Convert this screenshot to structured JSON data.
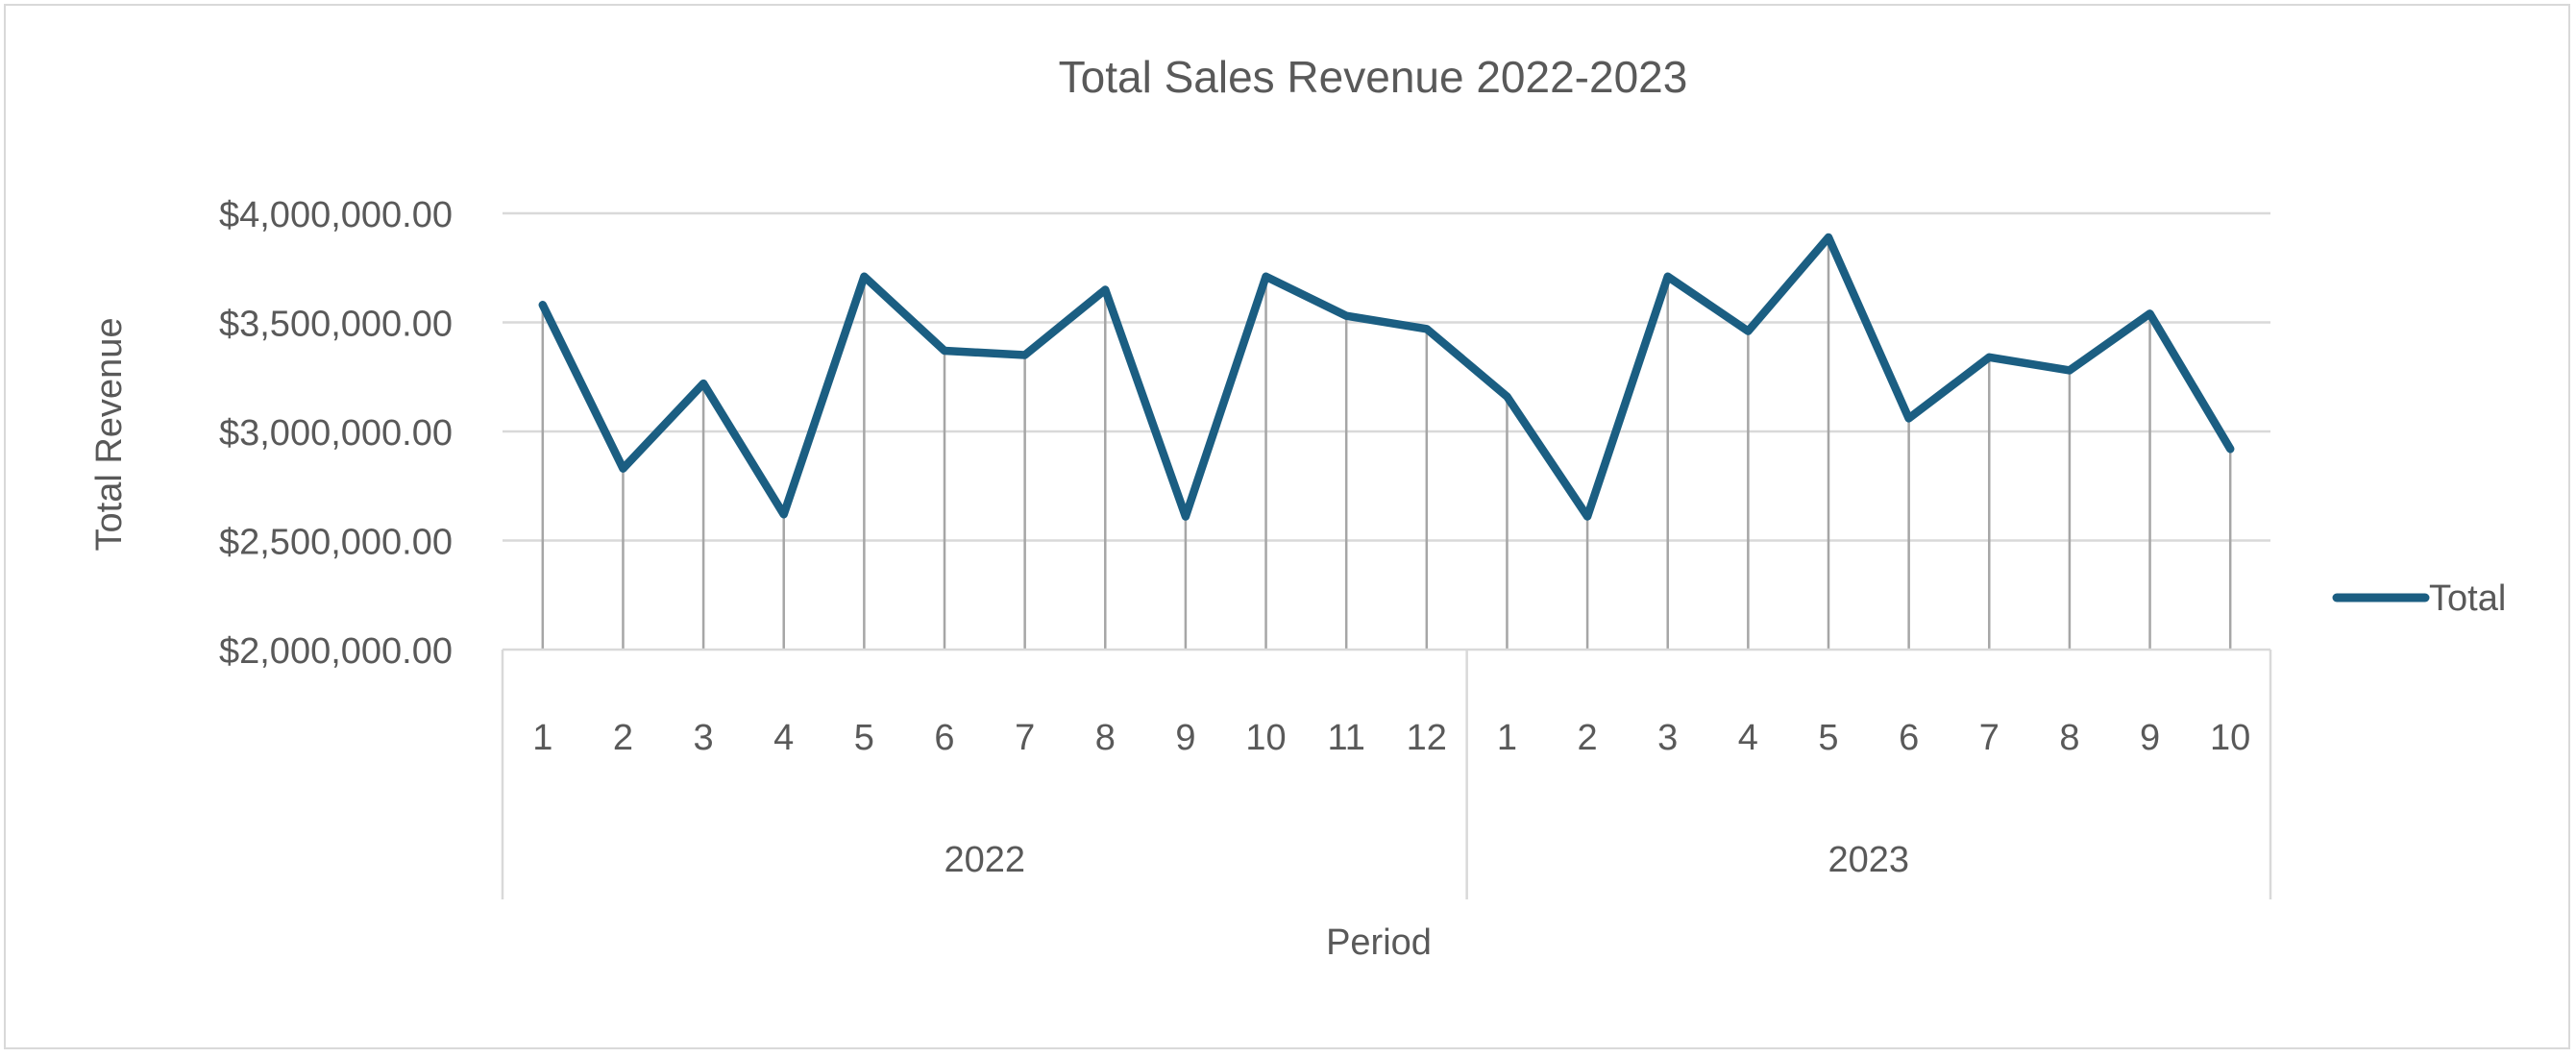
{
  "chart_data": {
    "type": "line",
    "title": "Total Sales Revenue 2022-2023",
    "xlabel": "Period",
    "ylabel": "Total Revenue",
    "ylim": [
      2000000,
      4000000
    ],
    "yticks": [
      2000000,
      2500000,
      3000000,
      3500000,
      4000000
    ],
    "ytick_labels": [
      "$2,000,000.00",
      "$2,500,000.00",
      "$3,000,000.00",
      "$3,500,000.00",
      "$4,000,000.00"
    ],
    "grid": "horizontal",
    "drop_lines": true,
    "legend_position": "right",
    "line_color": "#1b5e82",
    "groups": [
      {
        "label": "2022",
        "categories": [
          "1",
          "2",
          "3",
          "4",
          "5",
          "6",
          "7",
          "8",
          "9",
          "10",
          "11",
          "12"
        ]
      },
      {
        "label": "2023",
        "categories": [
          "1",
          "2",
          "3",
          "4",
          "5",
          "6",
          "7",
          "8",
          "9",
          "10"
        ]
      }
    ],
    "series": [
      {
        "name": "Total",
        "values": [
          3580000,
          2830000,
          3220000,
          2620000,
          3710000,
          3370000,
          3350000,
          3650000,
          2610000,
          3710000,
          3530000,
          3470000,
          3160000,
          2610000,
          3710000,
          3460000,
          3890000,
          3060000,
          3340000,
          3280000,
          3540000,
          2920000
        ]
      }
    ]
  }
}
